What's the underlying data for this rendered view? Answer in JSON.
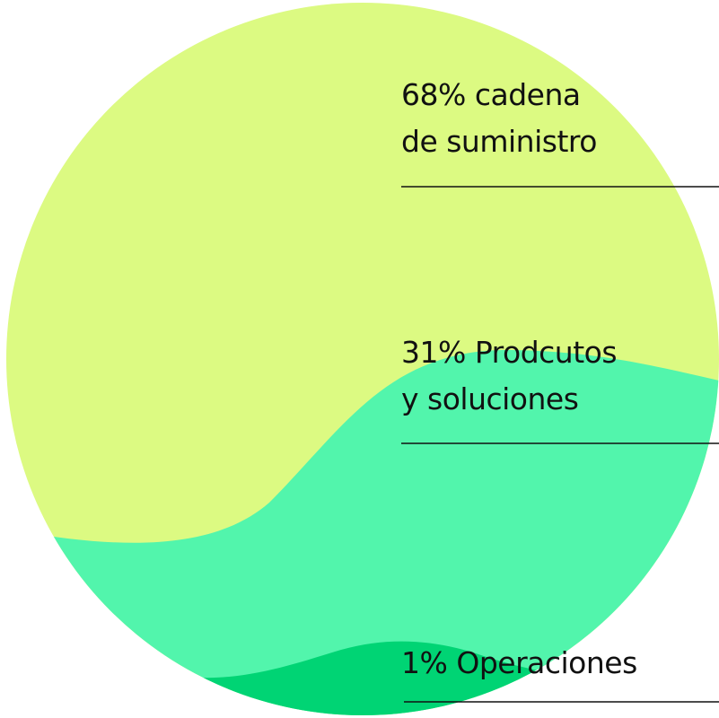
{
  "segments": [
    {
      "lines": [
        "68% cadena",
        "de suministro"
      ]
    },
    {
      "lines": [
        "31% Prodcutos",
        "y soluciones"
      ]
    },
    {
      "lines": [
        "1% Operaciones"
      ]
    }
  ]
}
